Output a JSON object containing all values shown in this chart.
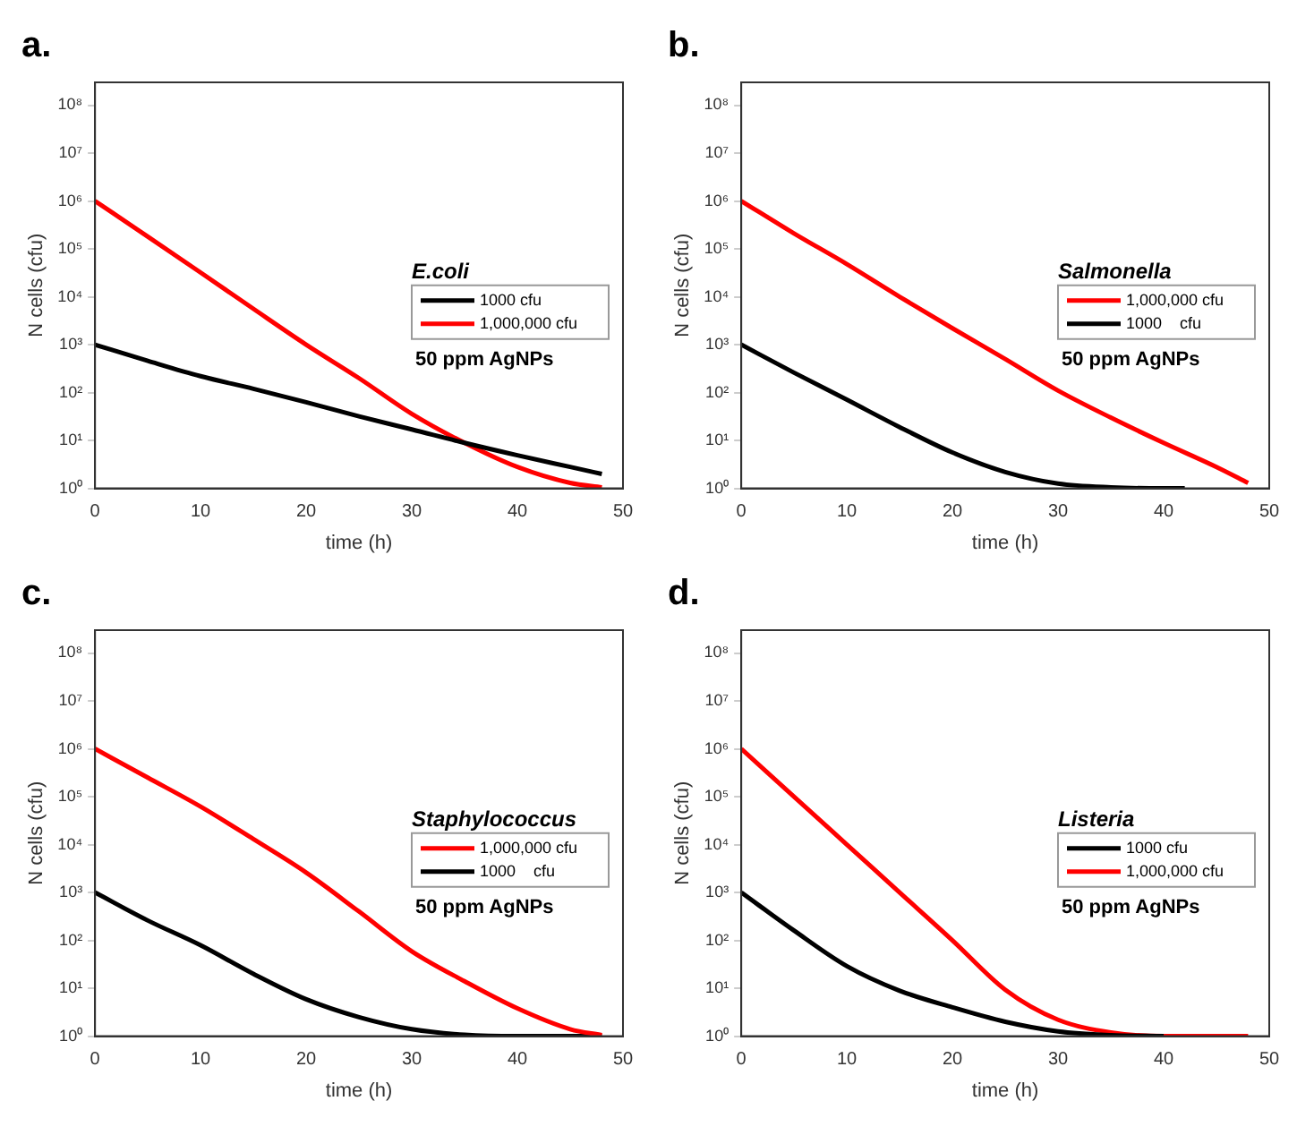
{
  "chart_data": [
    {
      "type": "line",
      "title": "a.",
      "legend_title": "E.coli",
      "xlabel": "time (h)",
      "ylabel": "N cells (cfu)",
      "annotations": [
        "50 ppm AgNPs"
      ],
      "log": "y",
      "grid": false,
      "legend": "right",
      "xlim": [
        0,
        50
      ],
      "xticks": [
        0,
        10,
        20,
        30,
        40,
        50
      ],
      "ylim": [
        1,
        300000000
      ],
      "yticks": [
        {
          "value": 1,
          "label": "10⁰"
        },
        {
          "value": 10,
          "label": "10¹"
        },
        {
          "value": 100,
          "label": "10²"
        },
        {
          "value": 1000,
          "label": "10³"
        },
        {
          "value": 10000,
          "label": "10⁴"
        },
        {
          "value": 100000,
          "label": "10⁵"
        },
        {
          "value": 1000000,
          "label": "10⁶"
        },
        {
          "value": 10000000,
          "label": "10⁷"
        },
        {
          "value": 100000000,
          "label": "10⁸"
        }
      ],
      "series": [
        {
          "name": "1000 cfu",
          "color": "#000000",
          "x": [
            0,
            5,
            10,
            15,
            20,
            25,
            30,
            35,
            40,
            45,
            48
          ],
          "values": [
            1000,
            460,
            220,
            120,
            63,
            32,
            17,
            8.9,
            4.9,
            2.8,
            2.0
          ]
        },
        {
          "name": "1,000,000 cfu",
          "color": "#ff0000",
          "x": [
            0,
            5,
            10,
            15,
            20,
            25,
            30,
            35,
            40,
            45,
            48
          ],
          "values": [
            1000000,
            180000,
            32000,
            5600,
            1000,
            200,
            36,
            8.9,
            2.8,
            1.3,
            1.05
          ]
        }
      ]
    },
    {
      "type": "line",
      "title": "b.",
      "legend_title": "Salmonella",
      "xlabel": "time (h)",
      "ylabel": "N cells (cfu)",
      "annotations": [
        "50 ppm AgNPs"
      ],
      "log": "y",
      "grid": false,
      "legend": "right",
      "xlim": [
        0,
        50
      ],
      "xticks": [
        0,
        10,
        20,
        30,
        40,
        50
      ],
      "ylim": [
        1,
        300000000
      ],
      "yticks": [
        {
          "value": 1,
          "label": "10⁰"
        },
        {
          "value": 10,
          "label": "10¹"
        },
        {
          "value": 100,
          "label": "10²"
        },
        {
          "value": 1000,
          "label": "10³"
        },
        {
          "value": 10000,
          "label": "10⁴"
        },
        {
          "value": 100000,
          "label": "10⁵"
        },
        {
          "value": 1000000,
          "label": "10⁶"
        },
        {
          "value": 10000000,
          "label": "10⁷"
        },
        {
          "value": 100000000,
          "label": "10⁸"
        }
      ],
      "series": [
        {
          "name": "1,000,000 cfu",
          "color": "#ff0000",
          "x": [
            0,
            5,
            10,
            15,
            20,
            25,
            30,
            35,
            40,
            45,
            48
          ],
          "values": [
            1000000,
            210000,
            48000,
            10000,
            2200,
            500,
            110,
            30,
            8.9,
            2.8,
            1.3
          ]
        },
        {
          "name": "1000    cfu",
          "color": "#000000",
          "x": [
            0,
            5,
            10,
            15,
            20,
            25,
            30,
            35,
            40,
            42
          ],
          "values": [
            1000,
            260,
            71,
            19,
            5.6,
            2.2,
            1.26,
            1.05,
            1,
            1
          ]
        }
      ]
    },
    {
      "type": "line",
      "title": "c.",
      "legend_title": "Staphylococcus",
      "xlabel": "time (h)",
      "ylabel": "N cells (cfu)",
      "annotations": [
        "50 ppm AgNPs"
      ],
      "log": "y",
      "grid": false,
      "legend": "right",
      "xlim": [
        0,
        50
      ],
      "xticks": [
        0,
        10,
        20,
        30,
        40,
        50
      ],
      "ylim": [
        1,
        300000000
      ],
      "yticks": [
        {
          "value": 1,
          "label": "10⁰"
        },
        {
          "value": 10,
          "label": "10¹"
        },
        {
          "value": 100,
          "label": "10²"
        },
        {
          "value": 1000,
          "label": "10³"
        },
        {
          "value": 10000,
          "label": "10⁴"
        },
        {
          "value": 100000,
          "label": "10⁵"
        },
        {
          "value": 1000000,
          "label": "10⁶"
        },
        {
          "value": 10000000,
          "label": "10⁷"
        },
        {
          "value": 100000000,
          "label": "10⁸"
        }
      ],
      "series": [
        {
          "name": "1,000,000 cfu",
          "color": "#ff0000",
          "x": [
            0,
            5,
            10,
            15,
            20,
            25,
            30,
            35,
            40,
            45,
            48
          ],
          "values": [
            1000000,
            250000,
            62000,
            13000,
            2600,
            400,
            59,
            14,
            3.8,
            1.4,
            1.05
          ]
        },
        {
          "name": "1000    cfu",
          "color": "#000000",
          "x": [
            0,
            5,
            10,
            15,
            20,
            25,
            30,
            35,
            40,
            48
          ],
          "values": [
            1000,
            260,
            79,
            20,
            5.9,
            2.5,
            1.4,
            1.07,
            1,
            1
          ]
        }
      ]
    },
    {
      "type": "line",
      "title": "d.",
      "legend_title": "Listeria",
      "xlabel": "time (h)",
      "ylabel": "N cells (cfu)",
      "annotations": [
        "50 ppm AgNPs"
      ],
      "log": "y",
      "grid": false,
      "legend": "right",
      "xlim": [
        0,
        50
      ],
      "xticks": [
        0,
        10,
        20,
        30,
        40,
        50
      ],
      "ylim": [
        1,
        300000000
      ],
      "yticks": [
        {
          "value": 1,
          "label": "10⁰"
        },
        {
          "value": 10,
          "label": "10¹"
        },
        {
          "value": 100,
          "label": "10²"
        },
        {
          "value": 1000,
          "label": "10³"
        },
        {
          "value": 10000,
          "label": "10⁴"
        },
        {
          "value": 100000,
          "label": "10⁵"
        },
        {
          "value": 1000000,
          "label": "10⁶"
        },
        {
          "value": 10000000,
          "label": "10⁷"
        },
        {
          "value": 100000000,
          "label": "10⁸"
        }
      ],
      "series": [
        {
          "name": "1000 cfu",
          "color": "#000000",
          "x": [
            0,
            5,
            10,
            15,
            20,
            25,
            30,
            35,
            40
          ],
          "values": [
            1000,
            160,
            29,
            8.9,
            4,
            2,
            1.26,
            1.05,
            1
          ]
        },
        {
          "name": "1,000,000 cfu",
          "color": "#ff0000",
          "x": [
            0,
            5,
            10,
            15,
            20,
            25,
            30,
            35,
            40,
            48
          ],
          "values": [
            1000000,
            100000,
            10000,
            1000,
            100,
            9.3,
            2.2,
            1.2,
            1,
            1
          ]
        }
      ]
    }
  ]
}
